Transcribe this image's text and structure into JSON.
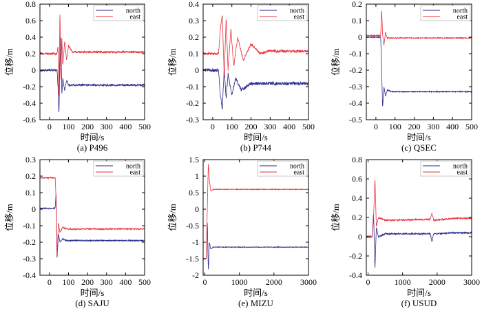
{
  "figure": {
    "legend_labels": [
      "north",
      "east"
    ],
    "colors": {
      "north": "#2a2a8c",
      "east": "#e8303a",
      "axes": "#000000",
      "legend_box": "#bbbbbb"
    }
  },
  "chart_data": [
    {
      "id": "a",
      "type": "line",
      "caption": "(a) P496",
      "xlabel": "时间/s",
      "ylabel": "位移/m",
      "xlim": [
        -50,
        500
      ],
      "ylim": [
        -0.6,
        0.8
      ],
      "xticks": [
        0,
        100,
        200,
        300,
        400,
        500
      ],
      "xtick_labels": [
        "0",
        "100",
        "200",
        "300",
        "400",
        "500"
      ],
      "yticks": [
        -0.6,
        -0.4,
        -0.2,
        0,
        0.2,
        0.4,
        0.6,
        0.8
      ],
      "ytick_labels": [
        "-0.6",
        "-0.4",
        "-0.2",
        "0",
        "0.2",
        "0.4",
        "0.6",
        "0.8"
      ],
      "legend": [
        "north",
        "east"
      ],
      "series": [
        {
          "name": "north",
          "pre": 0.0,
          "post": -0.18,
          "event": 40,
          "shape": [
            [
              40,
              0.0
            ],
            [
              45,
              -0.2
            ],
            [
              50,
              -0.55
            ],
            [
              55,
              0.1
            ],
            [
              60,
              0.4
            ],
            [
              65,
              -0.3
            ],
            [
              70,
              -0.1
            ],
            [
              80,
              -0.25
            ],
            [
              90,
              -0.12
            ],
            [
              100,
              -0.18
            ]
          ],
          "noise": 0.012
        },
        {
          "name": "east",
          "pre": 0.2,
          "post": 0.22,
          "event": 40,
          "shape": [
            [
              40,
              0.2
            ],
            [
              45,
              0.3
            ],
            [
              50,
              -0.4
            ],
            [
              55,
              0.74
            ],
            [
              60,
              -0.1
            ],
            [
              65,
              0.4
            ],
            [
              70,
              0.05
            ],
            [
              80,
              0.35
            ],
            [
              90,
              0.12
            ],
            [
              100,
              0.3
            ],
            [
              120,
              0.22
            ]
          ],
          "noise": 0.012
        }
      ]
    },
    {
      "id": "b",
      "type": "line",
      "caption": "(b) P744",
      "xlabel": "时间/s",
      "ylabel": "位移/m",
      "xlim": [
        -50,
        500
      ],
      "ylim": [
        -0.3,
        0.4
      ],
      "xticks": [
        0,
        100,
        200,
        300,
        400,
        500
      ],
      "xtick_labels": [
        "0",
        "100",
        "200",
        "300",
        "400",
        "500"
      ],
      "yticks": [
        -0.3,
        -0.2,
        -0.1,
        0,
        0.1,
        0.2,
        0.3,
        0.4
      ],
      "ytick_labels": [
        "-0.3",
        "-0.2",
        "-0.1",
        "0",
        "0.1",
        "0.2",
        "0.3",
        "0.4"
      ],
      "legend": [
        "north",
        "east"
      ],
      "series": [
        {
          "name": "north",
          "pre": 0.0,
          "post": -0.08,
          "event": 30,
          "shape": [
            [
              30,
              0.0
            ],
            [
              40,
              -0.15
            ],
            [
              50,
              -0.24
            ],
            [
              60,
              0.02
            ],
            [
              70,
              -0.18
            ],
            [
              80,
              -0.02
            ],
            [
              100,
              -0.15
            ],
            [
              120,
              -0.05
            ],
            [
              150,
              -0.12
            ],
            [
              200,
              -0.08
            ]
          ],
          "noise": 0.01
        },
        {
          "name": "east",
          "pre": 0.1,
          "post": 0.115,
          "event": 30,
          "shape": [
            [
              30,
              0.1
            ],
            [
              40,
              0.25
            ],
            [
              50,
              0.34
            ],
            [
              60,
              -0.05
            ],
            [
              70,
              0.32
            ],
            [
              80,
              0.0
            ],
            [
              95,
              0.25
            ],
            [
              110,
              0.02
            ],
            [
              130,
              0.2
            ],
            [
              160,
              0.06
            ],
            [
              200,
              0.16
            ],
            [
              250,
              0.1
            ],
            [
              300,
              0.12
            ]
          ],
          "noise": 0.008
        }
      ]
    },
    {
      "id": "c",
      "type": "line",
      "caption": "(c) QSEC",
      "xlabel": "时间/s",
      "ylabel": "位移/m",
      "xlim": [
        -50,
        500
      ],
      "ylim": [
        -0.5,
        0.2
      ],
      "xticks": [
        0,
        100,
        200,
        300,
        400,
        500
      ],
      "xtick_labels": [
        "0",
        "100",
        "200",
        "300",
        "400",
        "500"
      ],
      "yticks": [
        -0.5,
        -0.4,
        -0.3,
        -0.2,
        -0.1,
        0,
        0.1,
        0.2
      ],
      "ytick_labels": [
        "-0.5",
        "-0.4",
        "-0.3",
        "-0.2",
        "-0.1",
        "0",
        "0.1",
        "0.2"
      ],
      "legend": [
        "north",
        "east"
      ],
      "series": [
        {
          "name": "north",
          "pre": 0.0,
          "post": -0.33,
          "event": 25,
          "shape": [
            [
              25,
              0.0
            ],
            [
              30,
              -0.2
            ],
            [
              35,
              -0.43
            ],
            [
              42,
              -0.3
            ],
            [
              50,
              -0.36
            ],
            [
              60,
              -0.32
            ],
            [
              80,
              -0.33
            ]
          ],
          "noise": 0.003
        },
        {
          "name": "east",
          "pre": 0.01,
          "post": -0.005,
          "event": 25,
          "shape": [
            [
              25,
              0.01
            ],
            [
              30,
              0.17
            ],
            [
              35,
              0.02
            ],
            [
              42,
              -0.05
            ],
            [
              50,
              0.03
            ],
            [
              60,
              -0.01
            ]
          ],
          "noise": 0.003
        }
      ]
    },
    {
      "id": "d",
      "type": "line",
      "caption": "(d) SAJU",
      "xlabel": "时间/s",
      "ylabel": "位移/m",
      "xlim": [
        -50,
        500
      ],
      "ylim": [
        -0.4,
        0.3
      ],
      "xticks": [
        0,
        100,
        200,
        300,
        400,
        500
      ],
      "xtick_labels": [
        "0",
        "100",
        "200",
        "300",
        "400",
        "500"
      ],
      "yticks": [
        -0.4,
        -0.3,
        -0.2,
        -0.1,
        0,
        0.1,
        0.2,
        0.3
      ],
      "ytick_labels": [
        "-0.4",
        "-0.3",
        "-0.2",
        "-0.1",
        "0",
        "0.1",
        "0.2",
        "0.3"
      ],
      "legend": [
        "north",
        "east"
      ],
      "series": [
        {
          "name": "north",
          "pre": 0.005,
          "post": -0.19,
          "event": 30,
          "shape": [
            [
              30,
              0.005
            ],
            [
              35,
              0.1
            ],
            [
              40,
              -0.3
            ],
            [
              47,
              -0.15
            ],
            [
              55,
              -0.2
            ],
            [
              70,
              -0.18
            ],
            [
              90,
              -0.19
            ]
          ],
          "noise": 0.004
        },
        {
          "name": "east",
          "pre": 0.19,
          "post": -0.12,
          "event": 30,
          "shape": [
            [
              30,
              0.2
            ],
            [
              35,
              0.05
            ],
            [
              40,
              -0.28
            ],
            [
              47,
              -0.08
            ],
            [
              55,
              -0.14
            ],
            [
              70,
              -0.11
            ],
            [
              90,
              -0.12
            ]
          ],
          "noise": 0.004
        }
      ]
    },
    {
      "id": "e",
      "type": "line",
      "caption": "(e) MIZU",
      "xlabel": "时间/s",
      "ylabel": "位移/m",
      "xlim": [
        -50,
        3000
      ],
      "ylim": [
        -2,
        1.5
      ],
      "xticks": [
        0,
        1000,
        2000,
        3000
      ],
      "xtick_labels": [
        "0",
        "1000",
        "2000",
        "3000"
      ],
      "yticks": [
        -2,
        -1.5,
        -1,
        -0.5,
        0,
        0.5,
        1,
        1.5
      ],
      "ytick_labels": [
        "-2",
        "-1.5",
        "-1",
        "-0.5",
        "0",
        "0.5",
        "1",
        "1.5"
      ],
      "legend": [
        "north",
        "east"
      ],
      "series": [
        {
          "name": "north",
          "pre": -1.5,
          "post": -1.15,
          "event": 40,
          "shape": [
            [
              40,
              -1.5
            ],
            [
              70,
              -0.3
            ],
            [
              100,
              -1.9
            ],
            [
              130,
              -1.0
            ],
            [
              170,
              -1.2
            ],
            [
              250,
              -1.15
            ]
          ],
          "noise": 0.01
        },
        {
          "name": "east",
          "pre": -1.5,
          "post": 0.6,
          "event": 40,
          "shape": [
            [
              40,
              -1.5
            ],
            [
              70,
              0.0
            ],
            [
              100,
              1.4
            ],
            [
              130,
              0.9
            ],
            [
              170,
              0.55
            ],
            [
              250,
              0.6
            ]
          ],
          "noise": 0.01
        }
      ]
    },
    {
      "id": "f",
      "type": "line",
      "caption": "(f) USUD",
      "xlabel": "时间/s",
      "ylabel": "位移/m",
      "xlim": [
        -50,
        3000
      ],
      "ylim": [
        -0.4,
        0.8
      ],
      "xticks": [
        0,
        1000,
        2000,
        3000
      ],
      "xtick_labels": [
        "0",
        "1000",
        "2000",
        "3000"
      ],
      "yticks": [
        -0.4,
        -0.2,
        0,
        0.2,
        0.4,
        0.6,
        0.8
      ],
      "ytick_labels": [
        "-0.4",
        "-0.2",
        "0",
        "0.2",
        "0.4",
        "0.6",
        "0.8"
      ],
      "legend": [
        "north",
        "east"
      ],
      "series": [
        {
          "name": "north",
          "pre": 0.0,
          "post": 0.04,
          "event": 120,
          "shape": [
            [
              120,
              0.0
            ],
            [
              160,
              0.25
            ],
            [
              200,
              -0.35
            ],
            [
              240,
              0.1
            ],
            [
              300,
              0.0
            ],
            [
              500,
              0.03
            ],
            [
              1800,
              0.03
            ],
            [
              1850,
              -0.05
            ],
            [
              1900,
              0.03
            ],
            [
              2500,
              0.04
            ]
          ],
          "noise": 0.008
        },
        {
          "name": "east",
          "pre": 0.0,
          "post": 0.19,
          "event": 120,
          "shape": [
            [
              120,
              0.0
            ],
            [
              160,
              0.2
            ],
            [
              200,
              0.62
            ],
            [
              240,
              0.1
            ],
            [
              300,
              0.2
            ],
            [
              500,
              0.17
            ],
            [
              1800,
              0.18
            ],
            [
              1850,
              0.25
            ],
            [
              1900,
              0.17
            ],
            [
              2500,
              0.19
            ]
          ],
          "noise": 0.008
        }
      ]
    }
  ]
}
